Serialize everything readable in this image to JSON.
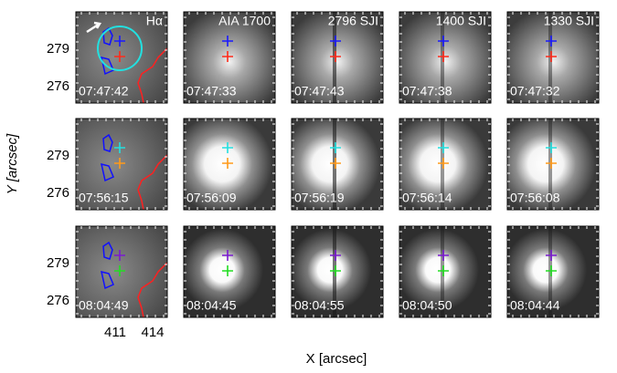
{
  "axes": {
    "ylabel": "Y [arcsec]",
    "xlabel": "X [arcsec]",
    "yticks": [
      "279",
      "276"
    ],
    "xticks": [
      "411",
      "414"
    ]
  },
  "columns": [
    "Hα",
    "AIA 1700",
    "2796 SJI",
    "1400 SJI",
    "1330 SJI"
  ],
  "rows": [
    {
      "times": [
        "07:47:42",
        "07:47:33",
        "07:47:43",
        "07:47:38",
        "07:47:32"
      ]
    },
    {
      "times": [
        "07:56:15",
        "07:56:09",
        "07:56:19",
        "07:56:14",
        "07:56:08"
      ]
    },
    {
      "times": [
        "08:04:49",
        "08:04:45",
        "08:04:55",
        "08:04:50",
        "08:04:44"
      ]
    }
  ]
}
